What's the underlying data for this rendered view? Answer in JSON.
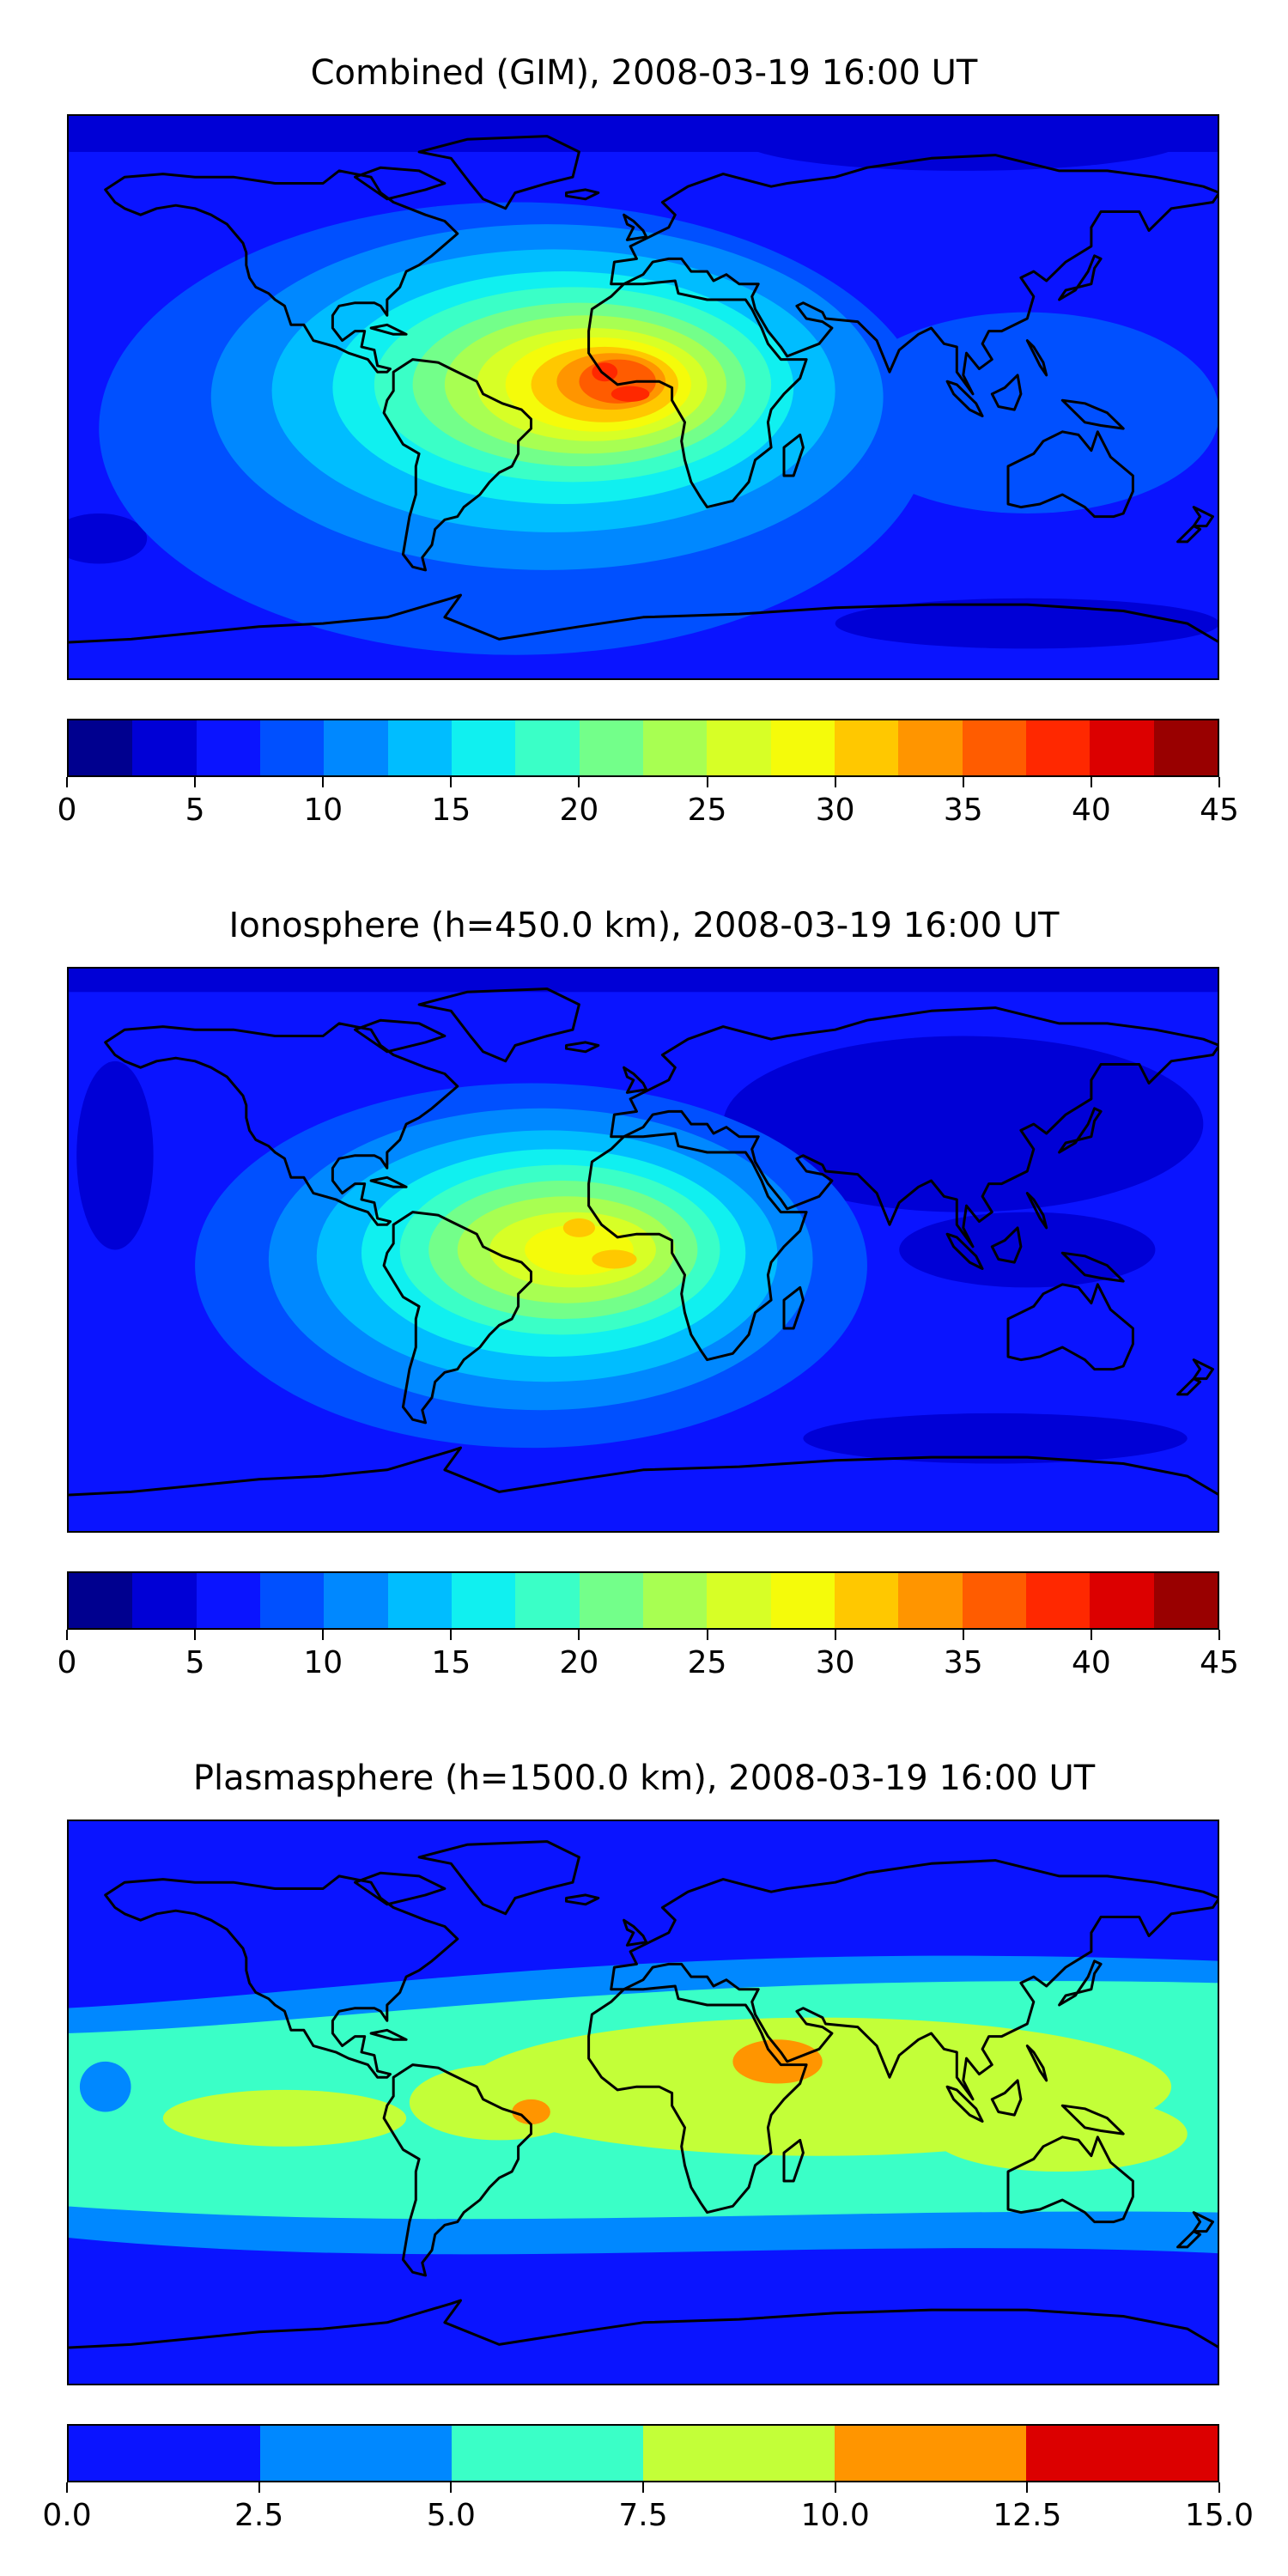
{
  "chart_data": [
    {
      "type": "heatmap",
      "title": "Combined (GIM), 2008-03-19 16:00 UT",
      "variant": "combined",
      "projection": "Plate Carree world map with coastlines",
      "colorbar": {
        "levels": [
          0,
          2.5,
          5,
          7.5,
          10,
          12.5,
          15,
          17.5,
          20,
          22.5,
          25,
          27.5,
          30,
          32.5,
          35,
          37.5,
          40,
          42.5,
          45
        ],
        "tick_labels": [
          "0",
          "5",
          "10",
          "15",
          "20",
          "25",
          "30",
          "35",
          "40",
          "45"
        ],
        "tick_values": [
          0,
          5,
          10,
          15,
          20,
          25,
          30,
          35,
          40,
          45
        ],
        "colors": [
          "#00008f",
          "#0000d6",
          "#0a14ff",
          "#0050ff",
          "#0088ff",
          "#00bdff",
          "#10f0f0",
          "#3affc7",
          "#73ff8a",
          "#a8ff52",
          "#d7ff26",
          "#f5fb0a",
          "#ffc800",
          "#ff9500",
          "#ff5c00",
          "#ff2800",
          "#dc0000",
          "#990000"
        ]
      },
      "peak_value_approx": 40
    },
    {
      "type": "heatmap",
      "title": "Ionosphere  (h=450.0 km), 2008-03-19 16:00 UT",
      "variant": "ionosphere",
      "projection": "Plate Carree world map with coastlines",
      "colorbar": {
        "levels": [
          0,
          2.5,
          5,
          7.5,
          10,
          12.5,
          15,
          17.5,
          20,
          22.5,
          25,
          27.5,
          30,
          32.5,
          35,
          37.5,
          40,
          42.5,
          45
        ],
        "tick_labels": [
          "0",
          "5",
          "10",
          "15",
          "20",
          "25",
          "30",
          "35",
          "40",
          "45"
        ],
        "tick_values": [
          0,
          5,
          10,
          15,
          20,
          25,
          30,
          35,
          40,
          45
        ],
        "colors": [
          "#00008f",
          "#0000d6",
          "#0a14ff",
          "#0050ff",
          "#0088ff",
          "#00bdff",
          "#10f0f0",
          "#3affc7",
          "#73ff8a",
          "#a8ff52",
          "#d7ff26",
          "#f5fb0a",
          "#ffc800",
          "#ff9500",
          "#ff5c00",
          "#ff2800",
          "#dc0000",
          "#990000"
        ]
      },
      "peak_value_approx": 30
    },
    {
      "type": "heatmap",
      "title": "Plasmasphere (h=1500.0 km), 2008-03-19 16:00 UT",
      "variant": "plasmasphere",
      "projection": "Plate Carree world map with coastlines",
      "colorbar": {
        "levels": [
          0,
          2.5,
          5,
          7.5,
          10,
          12.5,
          15
        ],
        "tick_labels": [
          "0.0",
          "2.5",
          "5.0",
          "7.5",
          "10.0",
          "12.5",
          "15.0"
        ],
        "tick_values": [
          0,
          2.5,
          5,
          7.5,
          10,
          12.5,
          15
        ],
        "colors": [
          "#0a14ff",
          "#0088ff",
          "#3affc7",
          "#c3ff38",
          "#ff9500",
          "#dc0000"
        ]
      },
      "peak_value_approx": 12.5
    }
  ]
}
